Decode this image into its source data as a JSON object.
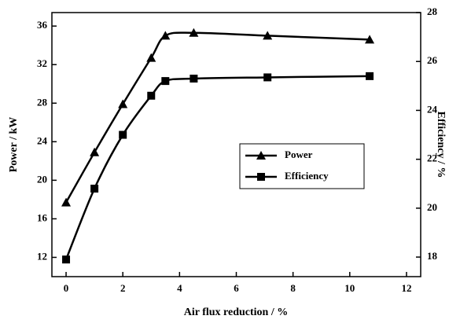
{
  "chart_data": {
    "type": "line",
    "x_label": "Air flux reduction / %",
    "y_label": "Power / kW",
    "y2_label": "Efficiency / %",
    "xlim": [
      -0.5,
      12.5
    ],
    "xticks": [
      0,
      2,
      4,
      6,
      8,
      10,
      12
    ],
    "ylim": [
      10,
      37.4
    ],
    "yticks": [
      12,
      16,
      20,
      24,
      28,
      32,
      36
    ],
    "y2lim": [
      17.2,
      28
    ],
    "y2ticks": [
      18,
      20,
      22,
      24,
      26,
      28
    ],
    "legend": "right",
    "series": [
      {
        "name": "Power",
        "color": "#000000",
        "marker": "triangle",
        "x": [
          0,
          1,
          2,
          3,
          3.5,
          4.5,
          7.1,
          10.7
        ],
        "values": [
          17.7,
          22.9,
          27.9,
          32.7,
          35.0,
          35.3,
          35.0,
          34.6
        ]
      },
      {
        "name": "Efficiency",
        "color": "#000000",
        "marker": "square",
        "axis": "y2",
        "x": [
          0,
          1,
          2,
          3,
          3.5,
          4.5,
          7.1,
          10.7
        ],
        "values": [
          17.9,
          20.8,
          23.0,
          24.6,
          25.2,
          25.3,
          25.35,
          25.4
        ]
      }
    ]
  }
}
